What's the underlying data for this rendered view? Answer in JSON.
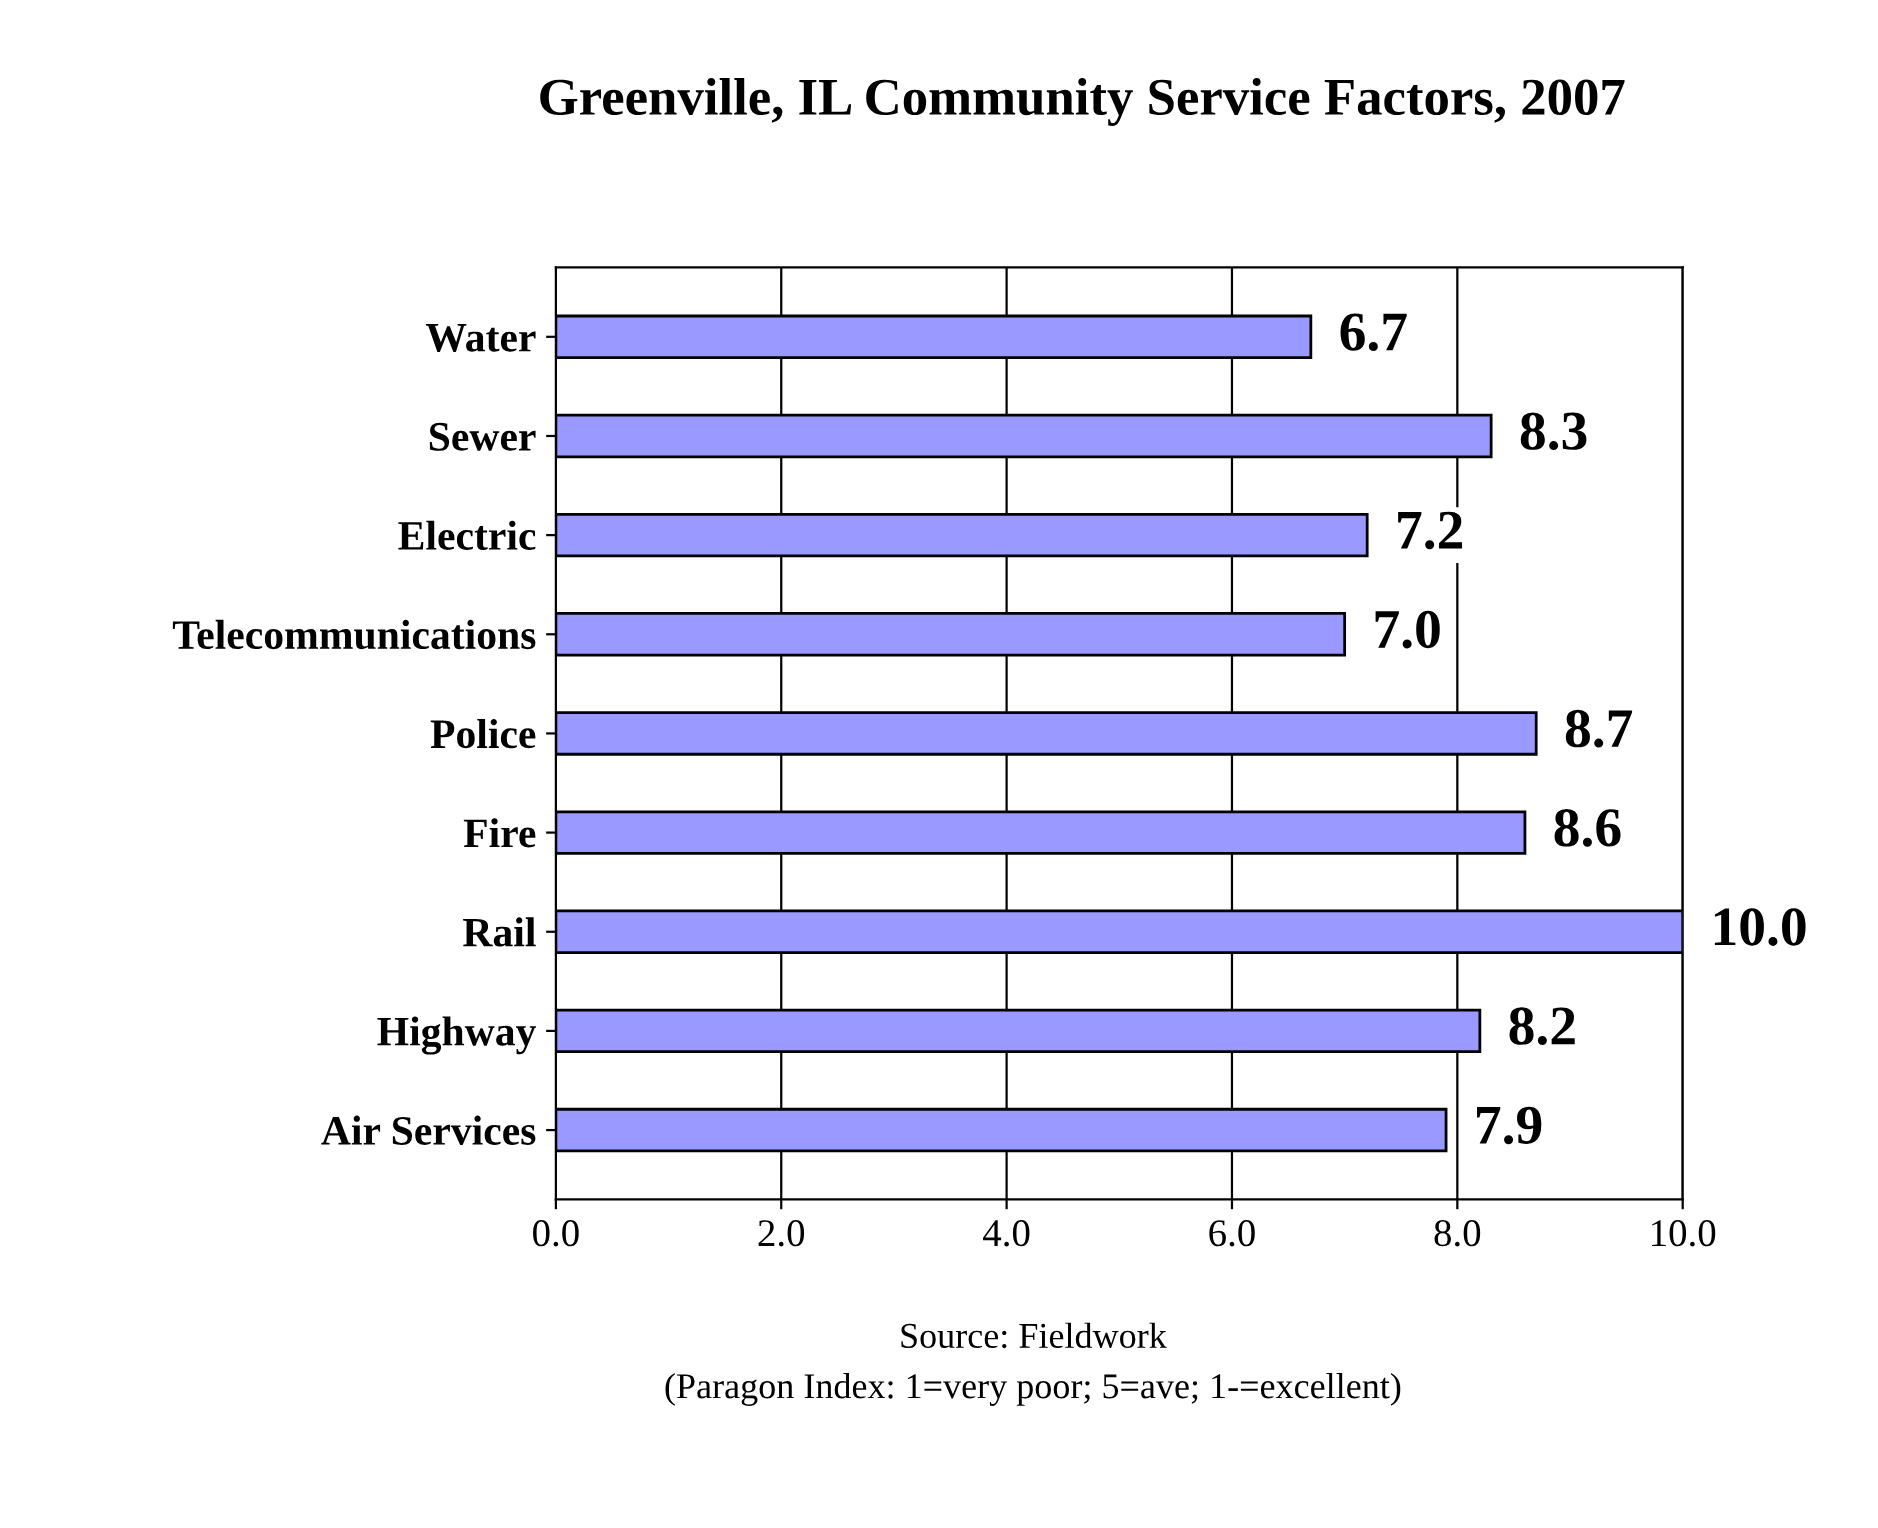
{
  "chart_data": {
    "type": "bar",
    "orientation": "horizontal",
    "title": "Greenville, IL Community Service Factors, 2007",
    "categories": [
      "Water",
      "Sewer",
      "Electric",
      "Telecommunications",
      "Police",
      "Fire",
      "Rail",
      "Highway",
      "Air Services"
    ],
    "values": [
      6.7,
      8.3,
      7.2,
      7.0,
      8.7,
      8.6,
      10.0,
      8.2,
      7.9
    ],
    "value_labels": [
      "6.7",
      "8.3",
      "7.2",
      "7.0",
      "8.7",
      "8.6",
      "10.0",
      "8.2",
      "7.9"
    ],
    "color": "#9999ff",
    "xlim": [
      0,
      10
    ],
    "xticks": [
      {
        "value": 0,
        "label": "0.0"
      },
      {
        "value": 2,
        "label": "2.0"
      },
      {
        "value": 4,
        "label": "4.0"
      },
      {
        "value": 6,
        "label": "6.0"
      },
      {
        "value": 8,
        "label": "8.0"
      },
      {
        "value": 10,
        "label": "10.0"
      }
    ],
    "grid": "x",
    "annotations": [
      "Source: Fieldwork",
      "(Paragon Index: 1=very poor; 5=ave; 1-=excellent)"
    ]
  }
}
